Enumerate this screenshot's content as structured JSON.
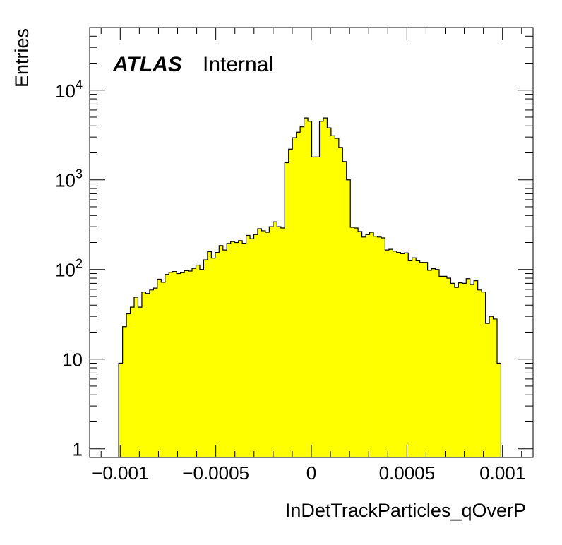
{
  "chart_data": {
    "type": "histogram",
    "title": "",
    "xlabel": "InDetTrackParticles_qOverP",
    "ylabel": "Entries",
    "label_bold": "ATLAS",
    "label_text": "Internal",
    "xlim": [
      -0.00116,
      0.00116
    ],
    "ylim": [
      0.8,
      50000
    ],
    "log_y": true,
    "fill_color": "#ffff00",
    "line_color": "#000000",
    "x_ticks": [
      {
        "value": -0.001,
        "label": "−0.001"
      },
      {
        "value": -0.0005,
        "label": "−0.0005"
      },
      {
        "value": 0,
        "label": "0"
      },
      {
        "value": 0.0005,
        "label": "0.0005"
      },
      {
        "value": 0.001,
        "label": "0.001"
      }
    ],
    "y_ticks": [
      {
        "value": 1,
        "base": "1",
        "exp": ""
      },
      {
        "value": 10,
        "base": "10",
        "exp": ""
      },
      {
        "value": 100,
        "base": "10",
        "exp": "2"
      },
      {
        "value": 1000,
        "base": "10",
        "exp": "3"
      },
      {
        "value": 10000,
        "base": "10",
        "exp": "4"
      }
    ],
    "bin_start": -0.001008,
    "bin_width": 2.02e-05,
    "values": [
      9,
      23,
      32,
      38,
      49,
      38,
      56,
      54,
      59,
      62,
      78,
      72,
      88,
      93,
      95,
      90,
      92,
      97,
      96,
      103,
      112,
      100,
      128,
      158,
      134,
      155,
      185,
      165,
      195,
      205,
      200,
      210,
      196,
      240,
      220,
      245,
      285,
      270,
      260,
      300,
      340,
      300,
      290,
      1550,
      2200,
      2950,
      3400,
      3900,
      4900,
      4500,
      1800,
      1800,
      4500,
      4900,
      3800,
      3100,
      2900,
      2300,
      1600,
      1000,
      295,
      290,
      265,
      230,
      245,
      260,
      235,
      230,
      225,
      165,
      168,
      160,
      155,
      150,
      153,
      125,
      135,
      125,
      120,
      120,
      98,
      102,
      100,
      84,
      84,
      80,
      70,
      63,
      71,
      70,
      79,
      68,
      75,
      59,
      56,
      25,
      30,
      28,
      9
    ]
  }
}
